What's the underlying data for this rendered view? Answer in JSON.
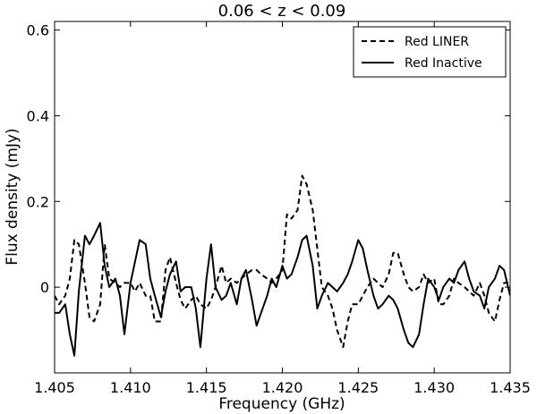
{
  "chart_data": {
    "type": "line",
    "title": "0.06  < z  < 0.09",
    "xlabel": "Frequency (GHz)",
    "ylabel": "Flux density (mJy)",
    "xlim": [
      1.405,
      1.435
    ],
    "ylim": [
      -0.2,
      0.62
    ],
    "x_ticks": [
      1.405,
      1.41,
      1.415,
      1.42,
      1.425,
      1.43,
      1.435
    ],
    "x_tick_labels": [
      "1.405",
      "1.410",
      "1.415",
      "1.420",
      "1.425",
      "1.430",
      "1.435"
    ],
    "y_ticks": [
      0,
      0.2,
      0.4,
      0.6
    ],
    "y_tick_labels": [
      "0",
      "0.2",
      "0.4",
      "0.6"
    ],
    "grid": false,
    "legend_position": "top-right",
    "series": [
      {
        "name": "Red LINER",
        "style": "dashed",
        "color": "#000000",
        "points": [
          [
            1.405,
            -0.02
          ],
          [
            1.4053,
            -0.04
          ],
          [
            1.4057,
            -0.02
          ],
          [
            1.406,
            0.02
          ],
          [
            1.4063,
            0.11
          ],
          [
            1.4066,
            0.1
          ],
          [
            1.407,
            0.01
          ],
          [
            1.4073,
            -0.07
          ],
          [
            1.4076,
            -0.08
          ],
          [
            1.408,
            -0.04
          ],
          [
            1.4083,
            0.1
          ],
          [
            1.4086,
            0.02
          ],
          [
            1.409,
            0.01
          ],
          [
            1.4093,
            0.0
          ],
          [
            1.4096,
            0.01
          ],
          [
            1.41,
            0.01
          ],
          [
            1.4103,
            -0.01
          ],
          [
            1.4106,
            0.01
          ],
          [
            1.411,
            -0.02
          ],
          [
            1.4113,
            -0.02
          ],
          [
            1.4116,
            -0.08
          ],
          [
            1.412,
            -0.08
          ],
          [
            1.4123,
            0.04
          ],
          [
            1.4126,
            0.07
          ],
          [
            1.413,
            0.01
          ],
          [
            1.4133,
            -0.03
          ],
          [
            1.4136,
            -0.05
          ],
          [
            1.414,
            -0.03
          ],
          [
            1.4143,
            -0.02
          ],
          [
            1.4146,
            -0.04
          ],
          [
            1.415,
            -0.05
          ],
          [
            1.4153,
            -0.03
          ],
          [
            1.4156,
            0.0
          ],
          [
            1.416,
            0.05
          ],
          [
            1.4163,
            0.01
          ],
          [
            1.4166,
            0.02
          ],
          [
            1.417,
            0.01
          ],
          [
            1.4173,
            0.02
          ],
          [
            1.4176,
            0.03
          ],
          [
            1.418,
            0.04
          ],
          [
            1.4183,
            0.04
          ],
          [
            1.4186,
            0.03
          ],
          [
            1.419,
            0.02
          ],
          [
            1.4193,
            0.01
          ],
          [
            1.4196,
            0.02
          ],
          [
            1.42,
            0.04
          ],
          [
            1.4203,
            0.17
          ],
          [
            1.4206,
            0.16
          ],
          [
            1.421,
            0.18
          ],
          [
            1.4213,
            0.26
          ],
          [
            1.4216,
            0.24
          ],
          [
            1.422,
            0.18
          ],
          [
            1.4223,
            0.09
          ],
          [
            1.4226,
            0.0
          ],
          [
            1.423,
            -0.02
          ],
          [
            1.4233,
            -0.05
          ],
          [
            1.4236,
            -0.1
          ],
          [
            1.424,
            -0.14
          ],
          [
            1.4243,
            -0.08
          ],
          [
            1.4246,
            -0.04
          ],
          [
            1.425,
            -0.04
          ],
          [
            1.4253,
            -0.02
          ],
          [
            1.4256,
            0.0
          ],
          [
            1.426,
            0.02
          ],
          [
            1.4263,
            0.01
          ],
          [
            1.4266,
            0.0
          ],
          [
            1.427,
            0.03
          ],
          [
            1.4273,
            0.08
          ],
          [
            1.4276,
            0.08
          ],
          [
            1.428,
            0.03
          ],
          [
            1.4283,
            0.0
          ],
          [
            1.4286,
            -0.01
          ],
          [
            1.429,
            0.0
          ],
          [
            1.4293,
            0.03
          ],
          [
            1.4296,
            0.01
          ],
          [
            1.43,
            0.02
          ],
          [
            1.4303,
            -0.04
          ],
          [
            1.4306,
            -0.04
          ],
          [
            1.431,
            -0.02
          ],
          [
            1.4313,
            0.02
          ],
          [
            1.4316,
            0.01
          ],
          [
            1.432,
            0.0
          ],
          [
            1.4323,
            -0.01
          ],
          [
            1.4326,
            -0.02
          ],
          [
            1.433,
            0.01
          ],
          [
            1.4333,
            -0.02
          ],
          [
            1.4336,
            -0.06
          ],
          [
            1.434,
            -0.08
          ],
          [
            1.4343,
            -0.03
          ],
          [
            1.4346,
            0.01
          ],
          [
            1.435,
            0.01
          ]
        ]
      },
      {
        "name": "Red Inactive",
        "style": "solid",
        "color": "#000000",
        "points": [
          [
            1.405,
            -0.06
          ],
          [
            1.4053,
            -0.06
          ],
          [
            1.4057,
            -0.04
          ],
          [
            1.406,
            -0.11
          ],
          [
            1.4063,
            -0.16
          ],
          [
            1.4066,
            -0.01
          ],
          [
            1.407,
            0.12
          ],
          [
            1.4073,
            0.1
          ],
          [
            1.4076,
            0.12
          ],
          [
            1.408,
            0.15
          ],
          [
            1.4083,
            0.05
          ],
          [
            1.4086,
            0.0
          ],
          [
            1.409,
            0.02
          ],
          [
            1.4093,
            -0.02
          ],
          [
            1.4096,
            -0.11
          ],
          [
            1.41,
            0.01
          ],
          [
            1.4103,
            0.06
          ],
          [
            1.4106,
            0.11
          ],
          [
            1.411,
            0.1
          ],
          [
            1.4113,
            0.02
          ],
          [
            1.4116,
            -0.02
          ],
          [
            1.412,
            -0.07
          ],
          [
            1.4123,
            -0.01
          ],
          [
            1.4126,
            0.03
          ],
          [
            1.413,
            0.06
          ],
          [
            1.4133,
            -0.01
          ],
          [
            1.4136,
            0.0
          ],
          [
            1.414,
            0.0
          ],
          [
            1.4143,
            -0.05
          ],
          [
            1.4146,
            -0.14
          ],
          [
            1.415,
            0.02
          ],
          [
            1.4153,
            0.1
          ],
          [
            1.4156,
            0.0
          ],
          [
            1.416,
            -0.03
          ],
          [
            1.4163,
            -0.02
          ],
          [
            1.4166,
            0.01
          ],
          [
            1.417,
            -0.04
          ],
          [
            1.4173,
            0.02
          ],
          [
            1.4176,
            0.04
          ],
          [
            1.418,
            -0.03
          ],
          [
            1.4183,
            -0.09
          ],
          [
            1.4186,
            -0.06
          ],
          [
            1.419,
            -0.02
          ],
          [
            1.4193,
            0.02
          ],
          [
            1.4196,
            0.0
          ],
          [
            1.42,
            0.05
          ],
          [
            1.4203,
            0.02
          ],
          [
            1.4206,
            0.03
          ],
          [
            1.421,
            0.07
          ],
          [
            1.4213,
            0.11
          ],
          [
            1.4216,
            0.12
          ],
          [
            1.422,
            0.05
          ],
          [
            1.4223,
            -0.05
          ],
          [
            1.4226,
            -0.02
          ],
          [
            1.423,
            0.01
          ],
          [
            1.4233,
            0.0
          ],
          [
            1.4236,
            -0.01
          ],
          [
            1.424,
            0.01
          ],
          [
            1.4243,
            0.03
          ],
          [
            1.4246,
            0.06
          ],
          [
            1.425,
            0.11
          ],
          [
            1.4253,
            0.09
          ],
          [
            1.4256,
            0.04
          ],
          [
            1.426,
            -0.02
          ],
          [
            1.4263,
            -0.05
          ],
          [
            1.4266,
            -0.04
          ],
          [
            1.427,
            -0.02
          ],
          [
            1.4273,
            -0.03
          ],
          [
            1.4276,
            -0.05
          ],
          [
            1.428,
            -0.1
          ],
          [
            1.4283,
            -0.13
          ],
          [
            1.4286,
            -0.14
          ],
          [
            1.429,
            -0.11
          ],
          [
            1.4293,
            -0.04
          ],
          [
            1.4296,
            0.02
          ],
          [
            1.43,
            0.0
          ],
          [
            1.4303,
            -0.03
          ],
          [
            1.4306,
            0.0
          ],
          [
            1.431,
            0.02
          ],
          [
            1.4313,
            0.01
          ],
          [
            1.4316,
            0.04
          ],
          [
            1.432,
            0.06
          ],
          [
            1.4323,
            0.02
          ],
          [
            1.4326,
            -0.01
          ],
          [
            1.433,
            -0.02
          ],
          [
            1.4333,
            -0.05
          ],
          [
            1.4336,
            0.0
          ],
          [
            1.434,
            0.02
          ],
          [
            1.4343,
            0.05
          ],
          [
            1.4346,
            0.04
          ],
          [
            1.435,
            -0.02
          ]
        ]
      }
    ]
  }
}
